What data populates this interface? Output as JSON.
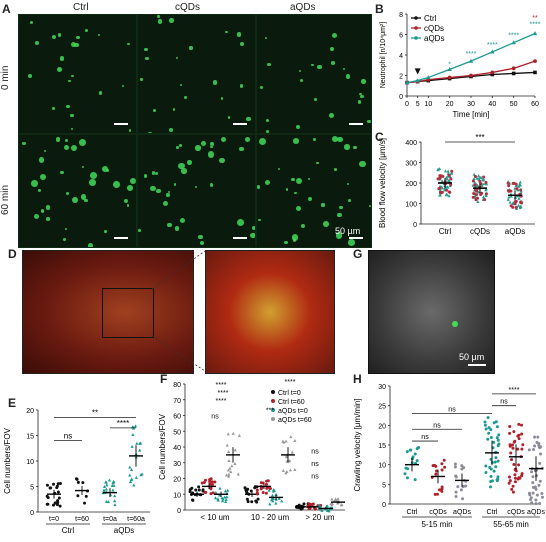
{
  "panelA": {
    "letter": "A",
    "columns": [
      "Ctrl",
      "cQDs",
      "aQDs"
    ],
    "rows": [
      "0 min",
      "60 min"
    ],
    "scale_label": "50 µm"
  },
  "panelB": {
    "letter": "B",
    "ylabel": "Neutrophil [n/10⁴μm²]",
    "xlabel": "Time [min]",
    "legend": [
      "Ctrl",
      "cQDs",
      "aQDs"
    ],
    "stars": [
      "*",
      "****",
      "****",
      "****",
      "**",
      "****"
    ]
  },
  "panelC": {
    "letter": "C",
    "ylabel": "Blood flow velocity [μm/s]",
    "sig": "***",
    "categories": [
      "Ctrl",
      "cQDs",
      "aQDs"
    ]
  },
  "panelD": {
    "letter": "D"
  },
  "panelE": {
    "letter": "E",
    "ylabel": "Cell numbers/FOV",
    "ticks": [
      "t=0",
      "t=60",
      "t=0a",
      "t=60a"
    ],
    "groups": [
      "Ctrl",
      "aQDs"
    ],
    "sig": [
      "ns",
      "**",
      "****"
    ]
  },
  "panelF": {
    "letter": "F",
    "ylabel": "Cell numbers/FOV",
    "legend": [
      "Ctrl t=0",
      "Ctrl t=60",
      "aQDs t=0",
      "aQDs t=60"
    ],
    "groups": [
      "< 10 um",
      "10 - 20 um",
      "> 20 um"
    ],
    "sig": [
      "ns",
      "****",
      "****",
      "****",
      "****",
      "***",
      "ns",
      "ns",
      "ns"
    ]
  },
  "panelG": {
    "letter": "G",
    "scale_label": "50 μm"
  },
  "panelH": {
    "letter": "H",
    "ylabel": "Crawling velocity [μm/min]",
    "ticks": [
      "Ctrl",
      "cQDs",
      "aQDs",
      "Ctrl",
      "cQDs",
      "aQDs"
    ],
    "groups": [
      "5-15 min",
      "55-65 min"
    ],
    "sig": [
      "ns",
      "ns",
      "ns",
      "ns",
      "****"
    ]
  },
  "chart_data": [
    {
      "type": "line",
      "x": [
        0,
        5,
        10,
        20,
        30,
        40,
        50,
        60
      ],
      "xlim": [
        0,
        60
      ],
      "ylim": [
        0,
        8
      ],
      "yticks": [
        0,
        2,
        4,
        6,
        8
      ],
      "xticks": [
        0,
        5,
        10,
        20,
        30,
        40,
        50,
        60
      ],
      "series": [
        {
          "name": "Ctrl",
          "color": "#111111",
          "values": [
            1.3,
            1.4,
            1.5,
            1.7,
            1.9,
            2.1,
            2.2,
            2.3
          ]
        },
        {
          "name": "cQDs",
          "color": "#b0202a",
          "values": [
            1.3,
            1.4,
            1.6,
            1.8,
            2.0,
            2.3,
            2.7,
            3.4
          ]
        },
        {
          "name": "aQDs",
          "color": "#1a9a90",
          "values": [
            1.3,
            1.5,
            1.8,
            2.6,
            3.4,
            4.3,
            5.2,
            6.1
          ]
        }
      ]
    },
    {
      "type": "scatter",
      "categories": [
        "Ctrl",
        "cQDs",
        "aQDs"
      ],
      "ylim": [
        0,
        400
      ],
      "yticks": [
        0,
        100,
        200,
        300,
        400
      ],
      "means": [
        200,
        175,
        140
      ]
    },
    {
      "type": "scatter",
      "categories": [
        "t=0",
        "t=60",
        "t=0a",
        "t=60a"
      ],
      "ylim": [
        0,
        20
      ],
      "yticks": [
        0,
        5,
        10,
        15,
        20
      ],
      "means": [
        3.5,
        4.2,
        3.8,
        11.0
      ]
    },
    {
      "type": "scatter",
      "categories": [
        "< 10 um",
        "10 - 20 um",
        "> 20 um"
      ],
      "ylim": [
        0,
        80
      ],
      "yticks": [
        0,
        10,
        20,
        30,
        40,
        50,
        60,
        70,
        80
      ],
      "means": [
        [
          10,
          15,
          10,
          35
        ],
        [
          10,
          15,
          8,
          35
        ],
        [
          2,
          2,
          1,
          5
        ]
      ]
    },
    {
      "type": "scatter",
      "categories": [
        "Ctrl",
        "cQDs",
        "aQDs",
        "Ctrl",
        "cQDs",
        "aQDs"
      ],
      "ylim": [
        0,
        30
      ],
      "yticks": [
        0,
        5,
        10,
        15,
        20,
        25,
        30
      ],
      "means": [
        10,
        7,
        6,
        13,
        12,
        9
      ]
    }
  ]
}
